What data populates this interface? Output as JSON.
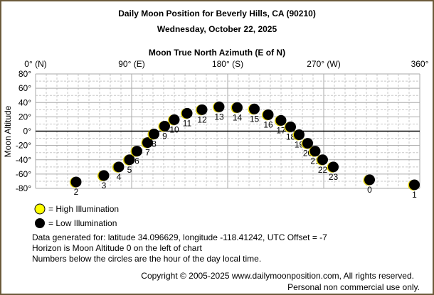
{
  "chart_data": {
    "type": "scatter",
    "title": "Daily Moon Position for Beverly Hills, CA (90210)",
    "subtitle": "Wednesday, October 22, 2025",
    "xlabel": "Moon True North Azimuth (E of N)",
    "ylabel": "Moon Altitude",
    "xlim": [
      0,
      360
    ],
    "ylim": [
      -80,
      80
    ],
    "grid": true,
    "x_ticks": [
      {
        "value": 0,
        "label": "0° (N)"
      },
      {
        "value": 90,
        "label": "90° (E)"
      },
      {
        "value": 180,
        "label": "180° (S)"
      },
      {
        "value": 270,
        "label": "270° (W)"
      },
      {
        "value": 360,
        "label": "360°"
      }
    ],
    "y_ticks": [
      {
        "value": 80,
        "label": "80°"
      },
      {
        "value": 60,
        "label": "60°"
      },
      {
        "value": 40,
        "label": "40°"
      },
      {
        "value": 20,
        "label": "20°"
      },
      {
        "value": 0,
        "label": "0°"
      },
      {
        "value": -20,
        "label": "-20°"
      },
      {
        "value": -40,
        "label": "-40°"
      },
      {
        "value": -60,
        "label": "-60°"
      },
      {
        "value": -80,
        "label": "-80°"
      }
    ],
    "points": [
      {
        "hour": "2",
        "azimuth": 38,
        "altitude": -71,
        "illumination": "low"
      },
      {
        "hour": "3",
        "azimuth": 64,
        "altitude": -62,
        "illumination": "low"
      },
      {
        "hour": "4",
        "azimuth": 78,
        "altitude": -50,
        "illumination": "low"
      },
      {
        "hour": "5",
        "azimuth": 88,
        "altitude": -40,
        "illumination": "low"
      },
      {
        "hour": "6",
        "azimuth": 95,
        "altitude": -28,
        "illumination": "low"
      },
      {
        "hour": "7",
        "azimuth": 105,
        "altitude": -16,
        "illumination": "low"
      },
      {
        "hour": "8",
        "azimuth": 111,
        "altitude": -4,
        "illumination": "low"
      },
      {
        "hour": "9",
        "azimuth": 121,
        "altitude": 7,
        "illumination": "low"
      },
      {
        "hour": "10",
        "azimuth": 130,
        "altitude": 16,
        "illumination": "low"
      },
      {
        "hour": "11",
        "azimuth": 142,
        "altitude": 25,
        "illumination": "low"
      },
      {
        "hour": "12",
        "azimuth": 156,
        "altitude": 30,
        "illumination": "low"
      },
      {
        "hour": "13",
        "azimuth": 172,
        "altitude": 34,
        "illumination": "low"
      },
      {
        "hour": "14",
        "azimuth": 189,
        "altitude": 33,
        "illumination": "low"
      },
      {
        "hour": "15",
        "azimuth": 205,
        "altitude": 31,
        "illumination": "low"
      },
      {
        "hour": "16",
        "azimuth": 218,
        "altitude": 23,
        "illumination": "low"
      },
      {
        "hour": "17",
        "azimuth": 230,
        "altitude": 15,
        "illumination": "low"
      },
      {
        "hour": "18",
        "azimuth": 239,
        "altitude": 6,
        "illumination": "low"
      },
      {
        "hour": "19",
        "azimuth": 247,
        "altitude": -5,
        "illumination": "low"
      },
      {
        "hour": "20",
        "azimuth": 255,
        "altitude": -17,
        "illumination": "low"
      },
      {
        "hour": "21",
        "azimuth": 262,
        "altitude": -28,
        "illumination": "low"
      },
      {
        "hour": "22",
        "azimuth": 269,
        "altitude": -40,
        "illumination": "low"
      },
      {
        "hour": "23",
        "azimuth": 279,
        "altitude": -50,
        "illumination": "low"
      },
      {
        "hour": "0",
        "azimuth": 313,
        "altitude": -68,
        "illumination": "low"
      },
      {
        "hour": "1",
        "azimuth": 355,
        "altitude": -75,
        "illumination": "low"
      }
    ],
    "legend": [
      {
        "label": "= High Illumination",
        "color": "#ffff00"
      },
      {
        "label": "= Low Illumination",
        "color": "#000000"
      }
    ],
    "colors": {
      "border": "#6b5a3a",
      "grid": "#c8c8c8",
      "highlight": "#e0d000"
    }
  },
  "notes": [
    "Data generated for: latitude 34.096629, longitude -118.41242, UTC Offset = -7",
    "Horizon is Moon Altitude 0 on the left of chart",
    "Numbers below the circles are the hour of the day local time."
  ],
  "copyright": "Copyright © 2005-2025 www.dailymoonposition.com, All rights reserved.",
  "usage": "Personal non commercial use only."
}
